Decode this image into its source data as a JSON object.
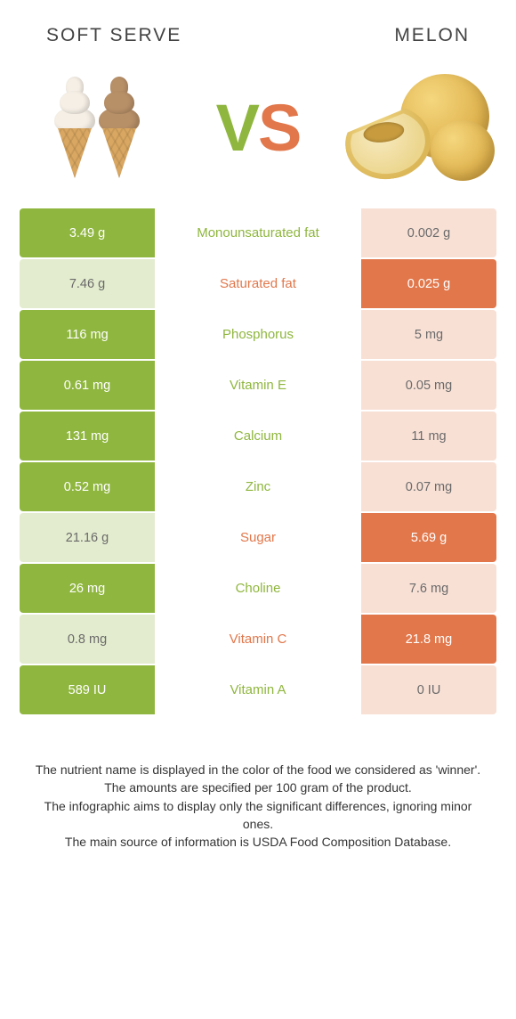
{
  "colors": {
    "green": "#8fb63e",
    "orange": "#e1774b",
    "faint_green": "#e3ecce",
    "faint_orange": "#f8e0d5",
    "text_dark": "#343434"
  },
  "header": {
    "left_title": "Soft serve",
    "right_title": "Melon"
  },
  "vs": {
    "v": "V",
    "s": "S"
  },
  "rows": [
    {
      "left": "3.49 g",
      "label": "Monounsaturated fat",
      "right": "0.002 g",
      "winner": "left"
    },
    {
      "left": "7.46 g",
      "label": "Saturated fat",
      "right": "0.025 g",
      "winner": "right"
    },
    {
      "left": "116 mg",
      "label": "Phosphorus",
      "right": "5 mg",
      "winner": "left"
    },
    {
      "left": "0.61 mg",
      "label": "Vitamin E",
      "right": "0.05 mg",
      "winner": "left"
    },
    {
      "left": "131 mg",
      "label": "Calcium",
      "right": "11 mg",
      "winner": "left"
    },
    {
      "left": "0.52 mg",
      "label": "Zinc",
      "right": "0.07 mg",
      "winner": "left"
    },
    {
      "left": "21.16 g",
      "label": "Sugar",
      "right": "5.69 g",
      "winner": "right"
    },
    {
      "left": "26 mg",
      "label": "Choline",
      "right": "7.6 mg",
      "winner": "left"
    },
    {
      "left": "0.8 mg",
      "label": "Vitamin C",
      "right": "21.8 mg",
      "winner": "right"
    },
    {
      "left": "589 IU",
      "label": "Vitamin A",
      "right": "0 IU",
      "winner": "left"
    }
  ],
  "footer": {
    "line1": "The nutrient name is displayed in the color of the food we considered as 'winner'.",
    "line2": "The amounts are specified per 100 gram of the product.",
    "line3": "The infographic aims to display only the significant differences, ignoring minor ones.",
    "line4": "The main source of information is USDA Food Composition Database."
  }
}
